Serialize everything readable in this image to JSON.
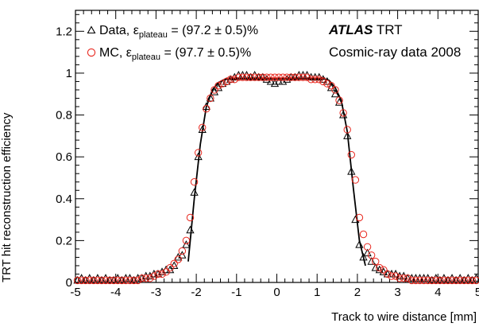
{
  "chart_data": {
    "type": "scatter",
    "xlabel": "Track to wire distance [mm]",
    "ylabel": "TRT hit reconstruction efficiency",
    "xlim": [
      -5,
      5
    ],
    "ylim": [
      0,
      1.3
    ],
    "x_ticks": [
      "-5",
      "-4",
      "-3",
      "-2",
      "-1",
      "0",
      "1",
      "2",
      "3",
      "4",
      "5"
    ],
    "y_ticks": [
      "0",
      "0.2",
      "0.4",
      "0.6",
      "0.8",
      "1",
      "1.2"
    ],
    "grid": false,
    "legend_placement": "top-left",
    "legend": [
      {
        "marker": "triangle",
        "label": "Data, ε",
        "sub": "plateau",
        "value": " = (97.2 ± 0.5)%"
      },
      {
        "marker": "circle",
        "label": "MC,   ε",
        "sub": "plateau",
        "value": " = (97.7 ± 0.5)%"
      }
    ],
    "annotation": {
      "atlas": "ATLAS",
      "detector": " TRT",
      "line2": "Cosmic-ray data 2008"
    },
    "colors": {
      "data": "#000000",
      "mc": "#e8261d",
      "fit_data": "#000000",
      "fit_mc": "#e8261d"
    },
    "series": [
      {
        "marker": "triangle",
        "points": [
          [
            -4.95,
            0.01
          ],
          [
            -4.85,
            0.02
          ],
          [
            -4.75,
            0.01
          ],
          [
            -4.65,
            0.02
          ],
          [
            -4.55,
            0.01
          ],
          [
            -4.45,
            0.02
          ],
          [
            -4.35,
            0.01
          ],
          [
            -4.25,
            0.02
          ],
          [
            -4.15,
            0.01
          ],
          [
            -4.05,
            0.01
          ],
          [
            -3.95,
            0.02
          ],
          [
            -3.85,
            0.01
          ],
          [
            -3.75,
            0.02
          ],
          [
            -3.65,
            0.02
          ],
          [
            -3.55,
            0.01
          ],
          [
            -3.45,
            0.02
          ],
          [
            -3.35,
            0.02
          ],
          [
            -3.25,
            0.03
          ],
          [
            -3.15,
            0.03
          ],
          [
            -3.05,
            0.04
          ],
          [
            -2.95,
            0.04
          ],
          [
            -2.85,
            0.05
          ],
          [
            -2.75,
            0.06
          ],
          [
            -2.65,
            0.06
          ],
          [
            -2.55,
            0.08
          ],
          [
            -2.45,
            0.12
          ],
          [
            -2.35,
            0.13
          ],
          [
            -2.25,
            0.18
          ],
          [
            -2.15,
            0.25
          ],
          [
            -2.05,
            0.43
          ],
          [
            -1.95,
            0.6
          ],
          [
            -1.85,
            0.73
          ],
          [
            -1.75,
            0.84
          ],
          [
            -1.65,
            0.88
          ],
          [
            -1.55,
            0.91
          ],
          [
            -1.45,
            0.93
          ],
          [
            -1.35,
            0.95
          ],
          [
            -1.25,
            0.96
          ],
          [
            -1.15,
            0.97
          ],
          [
            -1.05,
            0.98
          ],
          [
            -0.95,
            0.99
          ],
          [
            -0.85,
            0.99
          ],
          [
            -0.75,
            0.99
          ],
          [
            -0.65,
            0.98
          ],
          [
            -0.55,
            0.99
          ],
          [
            -0.45,
            0.98
          ],
          [
            -0.35,
            0.98
          ],
          [
            -0.25,
            0.97
          ],
          [
            -0.15,
            0.96
          ],
          [
            -0.05,
            0.95
          ],
          [
            0.05,
            0.96
          ],
          [
            0.15,
            0.96
          ],
          [
            0.25,
            0.97
          ],
          [
            0.35,
            0.98
          ],
          [
            0.45,
            0.98
          ],
          [
            0.55,
            0.99
          ],
          [
            0.65,
            0.99
          ],
          [
            0.75,
            0.99
          ],
          [
            0.85,
            0.98
          ],
          [
            0.95,
            0.98
          ],
          [
            1.05,
            0.98
          ],
          [
            1.15,
            0.97
          ],
          [
            1.25,
            0.96
          ],
          [
            1.35,
            0.93
          ],
          [
            1.45,
            0.9
          ],
          [
            1.55,
            0.86
          ],
          [
            1.65,
            0.8
          ],
          [
            1.75,
            0.7
          ],
          [
            1.85,
            0.53
          ],
          [
            1.95,
            0.3
          ],
          [
            2.05,
            0.18
          ],
          [
            2.15,
            0.12
          ],
          [
            2.25,
            0.14
          ],
          [
            2.35,
            0.1
          ],
          [
            2.45,
            0.07
          ],
          [
            2.55,
            0.06
          ],
          [
            2.65,
            0.05
          ],
          [
            2.75,
            0.04
          ],
          [
            2.85,
            0.04
          ],
          [
            2.95,
            0.04
          ],
          [
            3.05,
            0.03
          ],
          [
            3.15,
            0.03
          ],
          [
            3.25,
            0.02
          ],
          [
            3.35,
            0.02
          ],
          [
            3.45,
            0.02
          ],
          [
            3.55,
            0.02
          ],
          [
            3.65,
            0.02
          ],
          [
            3.75,
            0.02
          ],
          [
            3.85,
            0.01
          ],
          [
            3.95,
            0.02
          ],
          [
            4.05,
            0.01
          ],
          [
            4.15,
            0.02
          ],
          [
            4.25,
            0.01
          ],
          [
            4.35,
            0.02
          ],
          [
            4.45,
            0.01
          ],
          [
            4.55,
            0.02
          ],
          [
            4.65,
            0.01
          ],
          [
            4.75,
            0.02
          ],
          [
            4.85,
            0.01
          ],
          [
            4.95,
            0.02
          ]
        ]
      },
      {
        "marker": "circle",
        "points": [
          [
            -4.95,
            0.01
          ],
          [
            -4.85,
            0.01
          ],
          [
            -4.75,
            0.01
          ],
          [
            -4.65,
            0.01
          ],
          [
            -4.55,
            0.01
          ],
          [
            -4.45,
            0.01
          ],
          [
            -4.35,
            0.01
          ],
          [
            -4.25,
            0.01
          ],
          [
            -4.15,
            0.01
          ],
          [
            -4.05,
            0.01
          ],
          [
            -3.95,
            0.01
          ],
          [
            -3.85,
            0.01
          ],
          [
            -3.75,
            0.01
          ],
          [
            -3.65,
            0.01
          ],
          [
            -3.55,
            0.01
          ],
          [
            -3.45,
            0.01
          ],
          [
            -3.35,
            0.02
          ],
          [
            -3.25,
            0.02
          ],
          [
            -3.15,
            0.02
          ],
          [
            -3.05,
            0.03
          ],
          [
            -2.95,
            0.04
          ],
          [
            -2.85,
            0.04
          ],
          [
            -2.75,
            0.05
          ],
          [
            -2.65,
            0.07
          ],
          [
            -2.55,
            0.09
          ],
          [
            -2.45,
            0.11
          ],
          [
            -2.35,
            0.15
          ],
          [
            -2.25,
            0.2
          ],
          [
            -2.15,
            0.31
          ],
          [
            -2.05,
            0.48
          ],
          [
            -1.95,
            0.62
          ],
          [
            -1.85,
            0.74
          ],
          [
            -1.75,
            0.83
          ],
          [
            -1.65,
            0.88
          ],
          [
            -1.55,
            0.92
          ],
          [
            -1.45,
            0.94
          ],
          [
            -1.35,
            0.95
          ],
          [
            -1.25,
            0.96
          ],
          [
            -1.15,
            0.97
          ],
          [
            -1.05,
            0.97
          ],
          [
            -0.95,
            0.98
          ],
          [
            -0.85,
            0.98
          ],
          [
            -0.75,
            0.98
          ],
          [
            -0.65,
            0.98
          ],
          [
            -0.55,
            0.98
          ],
          [
            -0.45,
            0.98
          ],
          [
            -0.35,
            0.98
          ],
          [
            -0.25,
            0.98
          ],
          [
            -0.15,
            0.98
          ],
          [
            -0.05,
            0.98
          ],
          [
            0.05,
            0.98
          ],
          [
            0.15,
            0.98
          ],
          [
            0.25,
            0.98
          ],
          [
            0.35,
            0.98
          ],
          [
            0.45,
            0.98
          ],
          [
            0.55,
            0.98
          ],
          [
            0.65,
            0.98
          ],
          [
            0.75,
            0.98
          ],
          [
            0.85,
            0.97
          ],
          [
            0.95,
            0.97
          ],
          [
            1.05,
            0.97
          ],
          [
            1.15,
            0.96
          ],
          [
            1.25,
            0.95
          ],
          [
            1.35,
            0.94
          ],
          [
            1.45,
            0.92
          ],
          [
            1.55,
            0.87
          ],
          [
            1.65,
            0.81
          ],
          [
            1.75,
            0.73
          ],
          [
            1.85,
            0.61
          ],
          [
            1.95,
            0.49
          ],
          [
            2.05,
            0.31
          ],
          [
            2.15,
            0.23
          ],
          [
            2.25,
            0.17
          ],
          [
            2.35,
            0.13
          ],
          [
            2.45,
            0.1
          ],
          [
            2.55,
            0.07
          ],
          [
            2.65,
            0.06
          ],
          [
            2.75,
            0.04
          ],
          [
            2.85,
            0.03
          ],
          [
            2.95,
            0.03
          ],
          [
            3.05,
            0.02
          ],
          [
            3.15,
            0.02
          ],
          [
            3.25,
            0.02
          ],
          [
            3.35,
            0.01
          ],
          [
            3.45,
            0.01
          ],
          [
            3.55,
            0.01
          ],
          [
            3.65,
            0.01
          ],
          [
            3.75,
            0.01
          ],
          [
            3.85,
            0.01
          ],
          [
            3.95,
            0.01
          ],
          [
            4.05,
            0.01
          ],
          [
            4.15,
            0.01
          ],
          [
            4.25,
            0.01
          ],
          [
            4.35,
            0.01
          ],
          [
            4.45,
            0.01
          ],
          [
            4.55,
            0.01
          ],
          [
            4.65,
            0.01
          ],
          [
            4.75,
            0.01
          ],
          [
            4.85,
            0.01
          ],
          [
            4.95,
            0.01
          ]
        ]
      }
    ],
    "fit_lines": [
      {
        "marker": "triangle",
        "points": [
          [
            -2.2,
            0.1
          ],
          [
            -2.05,
            0.4
          ],
          [
            -1.9,
            0.66
          ],
          [
            -1.75,
            0.84
          ],
          [
            -1.6,
            0.92
          ],
          [
            -1.45,
            0.955
          ],
          [
            -1.3,
            0.97
          ],
          [
            -1.2,
            0.972
          ],
          [
            1.2,
            0.972
          ],
          [
            1.3,
            0.965
          ],
          [
            1.45,
            0.93
          ],
          [
            1.6,
            0.87
          ],
          [
            1.75,
            0.72
          ],
          [
            1.9,
            0.45
          ],
          [
            2.05,
            0.2
          ],
          [
            2.2,
            0.08
          ]
        ]
      },
      {
        "marker": "circle",
        "points": [
          [
            -1.2,
            0.977
          ],
          [
            1.2,
            0.977
          ]
        ]
      }
    ]
  }
}
